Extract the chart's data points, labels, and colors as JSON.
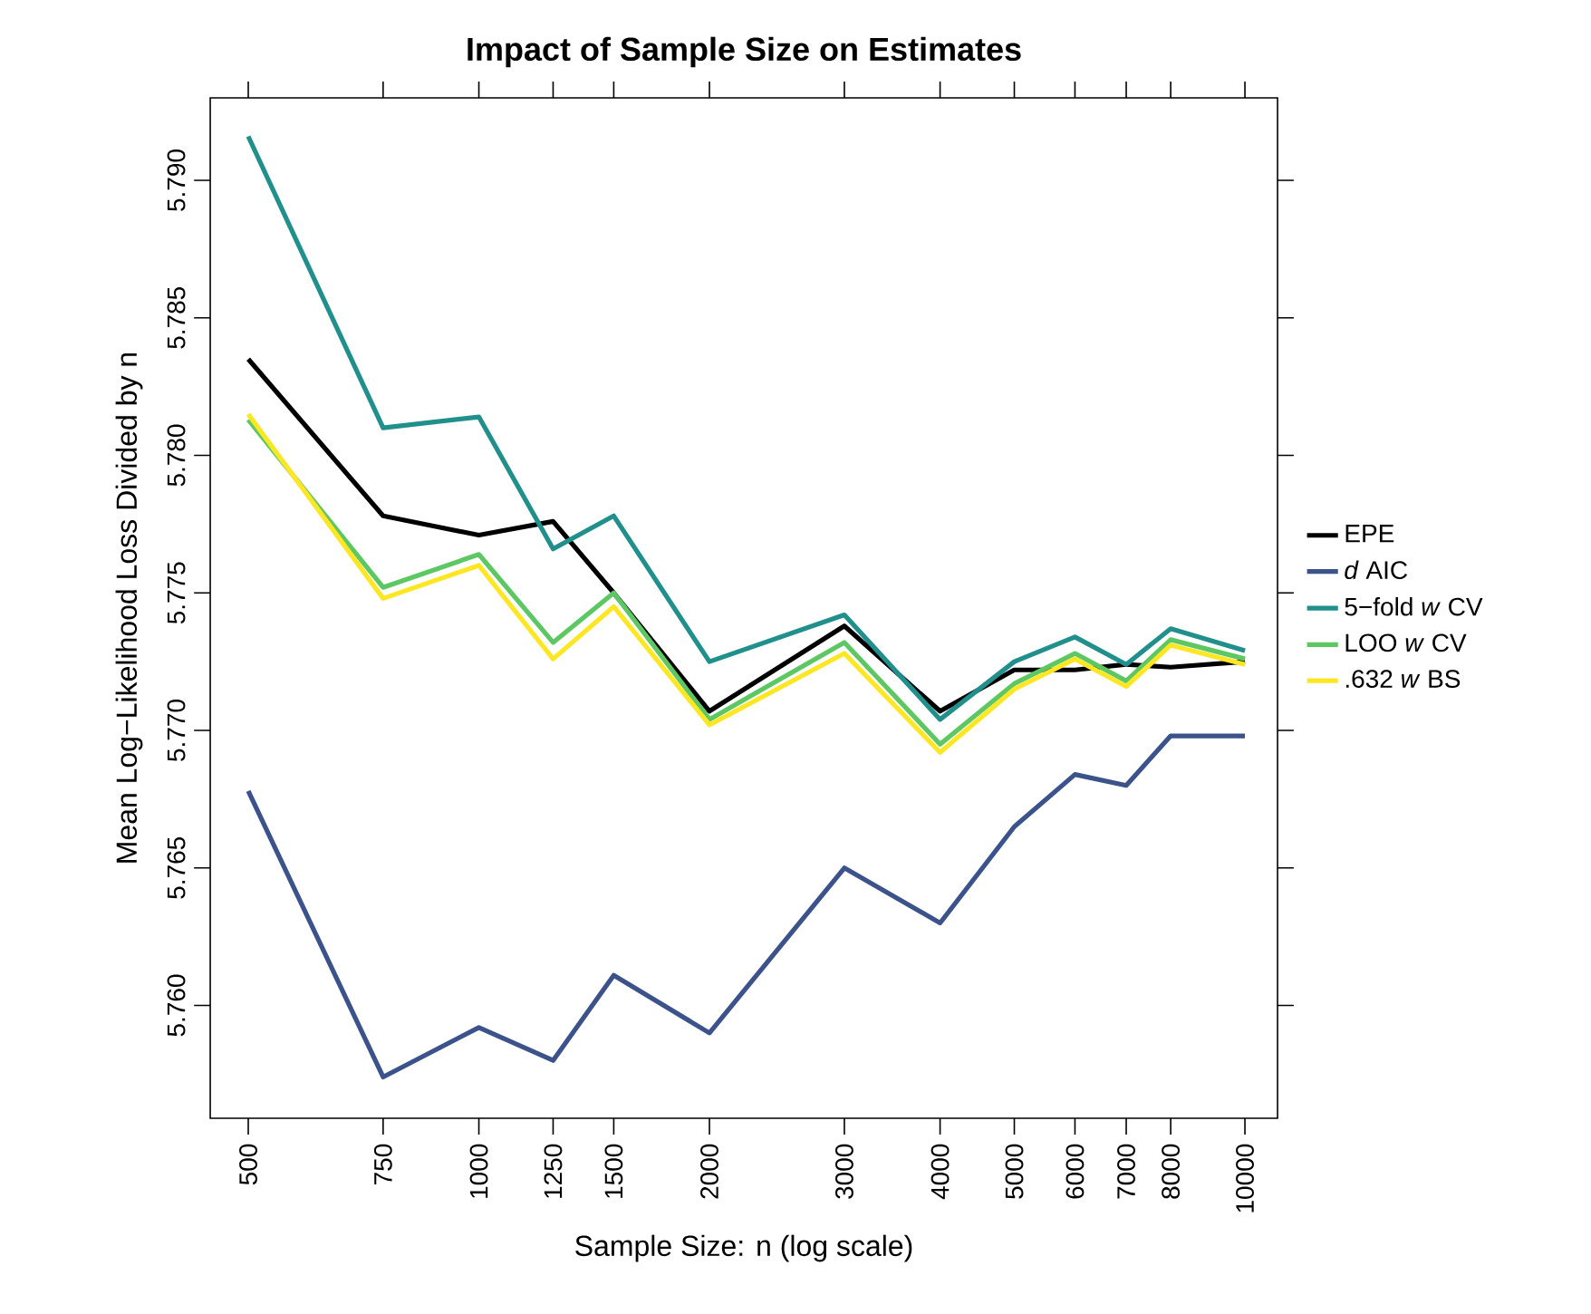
{
  "chart_data": {
    "type": "line",
    "title": "Impact of Sample Size on Estimates",
    "xlabel": "Sample Size: n (log scale)",
    "ylabel": "Mean Log−Likelihood Loss Divided by n",
    "log": "x",
    "legend": "right",
    "x": [
      500,
      750,
      1000,
      1250,
      1500,
      2000,
      3000,
      4000,
      5000,
      6000,
      7000,
      8000,
      10000
    ],
    "xlim": [
      446,
      11030
    ],
    "ylim": [
      5.7559,
      5.793
    ],
    "xticks": [
      500,
      750,
      1000,
      1250,
      1500,
      2000,
      3000,
      4000,
      5000,
      6000,
      7000,
      8000,
      10000
    ],
    "yticks": [
      {
        "value": 5.76,
        "label": "5.760"
      },
      {
        "value": 5.765,
        "label": "5.765"
      },
      {
        "value": 5.77,
        "label": "5.770"
      },
      {
        "value": 5.775,
        "label": "5.775"
      },
      {
        "value": 5.78,
        "label": "5.780"
      },
      {
        "value": 5.785,
        "label": "5.785"
      },
      {
        "value": 5.79,
        "label": "5.790"
      }
    ],
    "series": [
      {
        "name": "EPE",
        "color": "#000000",
        "values": [
          5.7835,
          5.7778,
          5.7771,
          5.7776,
          5.775,
          5.7707,
          5.7738,
          5.7707,
          5.7722,
          5.7722,
          5.7724,
          5.7723,
          5.7725
        ]
      },
      {
        "name": "*d* AIC",
        "color": "#3b528b",
        "values": [
          5.7678,
          5.7574,
          5.7592,
          5.758,
          5.7611,
          5.759,
          5.765,
          5.763,
          5.7665,
          5.7684,
          5.768,
          5.7698,
          5.7698
        ]
      },
      {
        "name": "5−fold *w* CV",
        "color": "#21908c",
        "values": [
          5.7916,
          5.781,
          5.7814,
          5.7766,
          5.7778,
          5.7725,
          5.7742,
          5.7704,
          5.7725,
          5.7734,
          5.7724,
          5.7737,
          5.7729
        ]
      },
      {
        "name": "LOO *w* CV",
        "color": "#5dc863",
        "values": [
          5.7813,
          5.7752,
          5.7764,
          5.7732,
          5.775,
          5.7704,
          5.7732,
          5.7695,
          5.7717,
          5.7728,
          5.7718,
          5.7733,
          5.7726
        ]
      },
      {
        "name": ".632 *w* BS",
        "color": "#fde725",
        "values": [
          5.7815,
          5.7748,
          5.776,
          5.7726,
          5.7745,
          5.7702,
          5.7728,
          5.7692,
          5.7715,
          5.7726,
          5.7716,
          5.7731,
          5.7724
        ]
      }
    ]
  }
}
